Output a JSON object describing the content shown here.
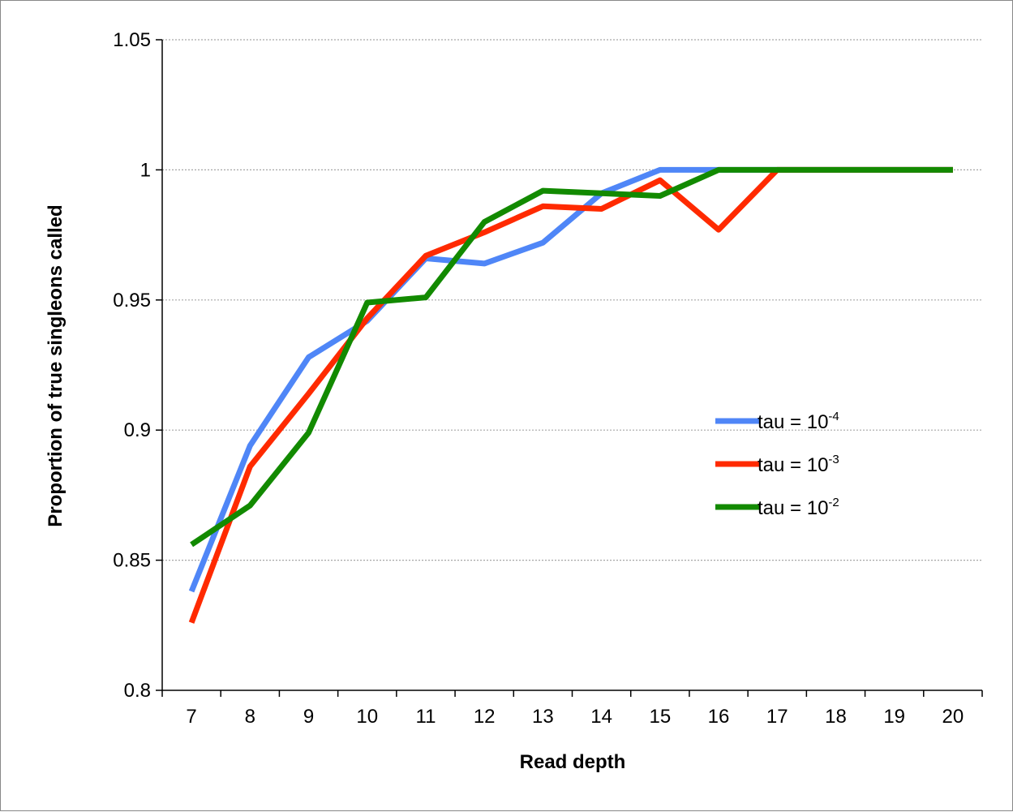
{
  "chart_data": {
    "type": "line",
    "title": "",
    "xlabel": "Read depth",
    "ylabel": "Proportion of true singleons called",
    "x": [
      7,
      8,
      9,
      10,
      11,
      12,
      13,
      14,
      15,
      16,
      17,
      18,
      19,
      20
    ],
    "ylim": [
      0.8,
      1.05
    ],
    "yticks": [
      0.8,
      0.85,
      0.9,
      0.95,
      1,
      1.05
    ],
    "ytick_labels": [
      "0.8",
      "0.85",
      "0.9",
      "0.95",
      "1",
      "1.05"
    ],
    "grid": "horizontal dotted",
    "legend_position": "right",
    "series": [
      {
        "name": "tau = 10^-4",
        "label_base": "tau = 10",
        "label_exp": "-4",
        "color": "#4F86F7",
        "values": [
          0.838,
          0.894,
          0.928,
          0.942,
          0.966,
          0.964,
          0.972,
          0.991,
          1.0,
          1.0,
          1.0,
          1.0,
          1.0,
          1.0
        ]
      },
      {
        "name": "tau = 10^-3",
        "label_base": "tau = 10",
        "label_exp": "-3",
        "color": "#FF2A00",
        "values": [
          0.826,
          0.886,
          0.914,
          0.943,
          0.967,
          0.976,
          0.986,
          0.985,
          0.996,
          0.977,
          1.0,
          1.0,
          1.0,
          1.0
        ]
      },
      {
        "name": "tau = 10^-2",
        "label_base": "tau = 10",
        "label_exp": "-2",
        "color": "#128A00",
        "values": [
          0.856,
          0.871,
          0.899,
          0.949,
          0.951,
          0.98,
          0.992,
          0.991,
          0.99,
          1.0,
          1.0,
          1.0,
          1.0,
          1.0
        ]
      }
    ]
  }
}
